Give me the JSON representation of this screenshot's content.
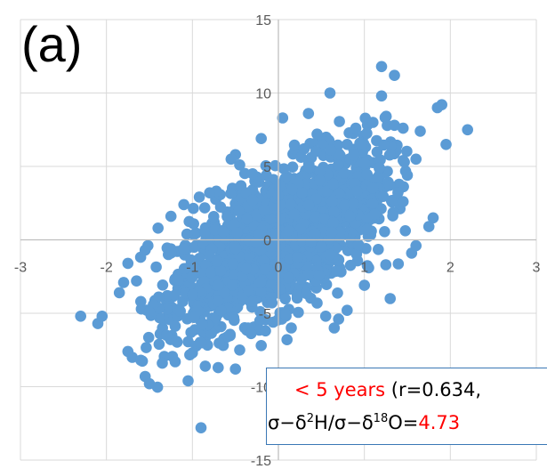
{
  "panel_label": "(a)",
  "annotation": {
    "line1_red": "< 5 years",
    "line1_rest": " (r=0.634,",
    "line2_sigma1": "σ−δ",
    "line2_sup1": "2",
    "line2_mid": "H/σ−δ",
    "line2_sup2": "18",
    "line2_end": "O=",
    "line2_value": "4.73"
  },
  "colors": {
    "points": "#5b9bd5",
    "axis": "#bfbfbf",
    "highlight": "#ff0000",
    "box_border": "#3a78b5"
  },
  "chart_data": {
    "type": "scatter",
    "title": "",
    "xlabel": "",
    "ylabel": "",
    "xlim": [
      -3,
      3
    ],
    "ylim": [
      -15,
      15
    ],
    "x_ticks": [
      "-3",
      "-2",
      "-1",
      "0",
      "1",
      "2",
      "3"
    ],
    "y_ticks": [
      "-15",
      "-10",
      "-5",
      "0",
      "5",
      "10",
      "15"
    ],
    "grid": true,
    "series": [
      {
        "points": [
          [
            -2.3,
            -5.2
          ],
          [
            -2.1,
            -5.7
          ],
          [
            -2.05,
            -5.2
          ],
          [
            -1.85,
            -3.6
          ],
          [
            -1.75,
            -7.6
          ],
          [
            -1.7,
            -8.0
          ],
          [
            -1.6,
            -8.2
          ],
          [
            -1.55,
            -9.3
          ],
          [
            -1.5,
            -9.8
          ],
          [
            -1.35,
            -8.4
          ],
          [
            -1.2,
            -8.3
          ],
          [
            -1.05,
            -9.6
          ],
          [
            -0.9,
            -12.8
          ],
          [
            -1.0,
            -7.7
          ],
          [
            -0.85,
            -8.6
          ],
          [
            -0.7,
            -8.7
          ],
          [
            -0.5,
            -8.8
          ],
          [
            -0.45,
            -7.5
          ],
          [
            -0.15,
            -6.2
          ],
          [
            0.1,
            -6.8
          ],
          [
            0.55,
            -5.2
          ],
          [
            0.7,
            -5.4
          ],
          [
            1.0,
            -3.1
          ],
          [
            1.05,
            -1.9
          ],
          [
            1.3,
            -4.0
          ],
          [
            1.25,
            -1.7
          ],
          [
            1.55,
            -0.9
          ],
          [
            1.6,
            -0.4
          ],
          [
            1.75,
            0.9
          ],
          [
            1.8,
            1.5
          ],
          [
            1.95,
            6.5
          ],
          [
            2.2,
            7.5
          ],
          [
            1.9,
            9.2
          ],
          [
            1.85,
            9.0
          ],
          [
            1.65,
            7.4
          ],
          [
            1.45,
            7.6
          ],
          [
            1.35,
            7.8
          ],
          [
            1.3,
            5.8
          ],
          [
            1.2,
            11.8
          ],
          [
            1.35,
            11.2
          ],
          [
            1.2,
            9.8
          ],
          [
            0.6,
            10.0
          ],
          [
            0.45,
            7.2
          ],
          [
            0.35,
            8.6
          ],
          [
            0.05,
            8.3
          ],
          [
            -0.2,
            6.9
          ],
          [
            -0.5,
            5.8
          ],
          [
            -0.45,
            5.1
          ],
          [
            -0.55,
            5.5
          ],
          [
            -0.8,
            3.2
          ],
          [
            -1.1,
            2.4
          ],
          [
            -1.25,
            1.6
          ],
          [
            -1.4,
            0.8
          ],
          [
            -1.55,
            -0.7
          ],
          [
            -1.75,
            -1.6
          ],
          [
            -1.65,
            -2.8
          ],
          [
            -1.8,
            -2.9
          ],
          [
            -1.6,
            -4.2
          ],
          [
            -1.3,
            -6.5
          ],
          [
            -0.2,
            -7.2
          ],
          [
            0.15,
            -6.0
          ],
          [
            0.65,
            -6.0
          ],
          [
            0.8,
            -4.8
          ],
          [
            0.45,
            -4.3
          ],
          [
            1.5,
            4.4
          ],
          [
            1.45,
            2.6
          ],
          [
            1.6,
            5.5
          ],
          [
            1.1,
            8.0
          ],
          [
            0.9,
            7.6
          ],
          [
            0.8,
            6.5
          ],
          [
            0.3,
            6.2
          ],
          [
            -0.3,
            4.5
          ]
        ]
      }
    ],
    "cloud": {
      "count": 1700,
      "mean": [
        0.0,
        0.0
      ],
      "std": [
        0.62,
        2.95
      ],
      "r": 0.634
    }
  }
}
